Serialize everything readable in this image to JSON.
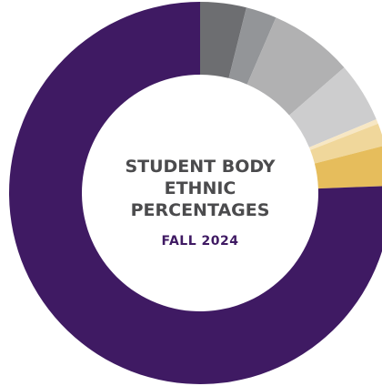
{
  "chart_data": {
    "type": "pie",
    "title_lines": [
      "STUDENT BODY",
      "ETHNIC",
      "PERCENTAGES"
    ],
    "subtitle": "FALL 2024",
    "slices": [
      {
        "value": 3.9,
        "color": "#6d6e71"
      },
      {
        "value": 2.6,
        "color": "#939598"
      },
      {
        "value": 7.1,
        "color": "#b1b1b2"
      },
      {
        "value": 5.1,
        "color": "#cdcdce"
      },
      {
        "value": 0.4,
        "color": "#f7e7c4"
      },
      {
        "value": 1.9,
        "color": "#f0d79b"
      },
      {
        "value": 3.4,
        "color": "#e6bd5c"
      },
      {
        "value": 75.6,
        "color": "#3f1a63"
      }
    ]
  }
}
